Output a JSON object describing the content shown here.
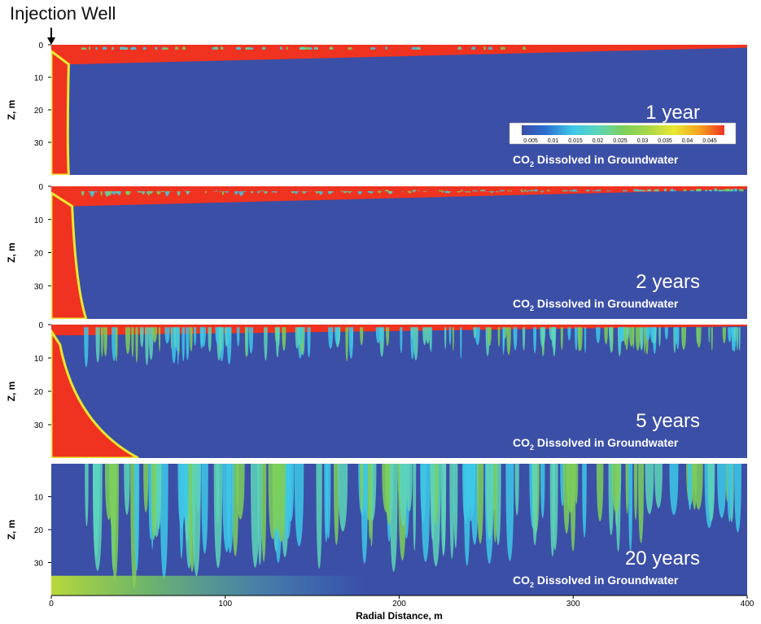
{
  "annotation": "Injection Well",
  "chart_data": {
    "type": "heatmap",
    "xlabel": "Radial Distance, m",
    "ylabel": "Z, m",
    "xlim": [
      0,
      400
    ],
    "ylim": [
      0,
      40
    ],
    "y_inverted": true,
    "x_ticks": [
      "0",
      "100",
      "200",
      "300",
      "400"
    ],
    "colorscale": {
      "ticks": [
        "0.005",
        "0.01",
        "0.015",
        "0.02",
        "0.025",
        "0.03",
        "0.035",
        "0.04",
        "0.045"
      ],
      "colors": [
        "#3b4fa6",
        "#2a7fd6",
        "#3ec8e8",
        "#5ed5b8",
        "#7ccf5a",
        "#a8d64a",
        "#e8e830",
        "#f5a020",
        "#ef3320"
      ]
    },
    "caption": "CO",
    "caption_sub": "2",
    "caption_rest": " Dissolved in Groundwater",
    "panels": [
      {
        "label": "1 year",
        "y_ticks": [
          "0",
          "10",
          "20",
          "30"
        ],
        "show_colorbar": true,
        "finger_depth": 0.5,
        "plume_end": 10
      },
      {
        "label": "2 years",
        "y_ticks": [
          "0",
          "10",
          "20",
          "30"
        ],
        "show_colorbar": false,
        "finger_depth": 2.5,
        "plume_end": 20
      },
      {
        "label": "5 years",
        "y_ticks": [
          "0",
          "10",
          "20",
          "30"
        ],
        "show_colorbar": false,
        "finger_depth": 10,
        "plume_end": 50
      },
      {
        "label": "20 years",
        "y_ticks": [
          "10",
          "20",
          "30"
        ],
        "show_colorbar": false,
        "finger_depth": 30,
        "plume_end": 90
      }
    ]
  }
}
